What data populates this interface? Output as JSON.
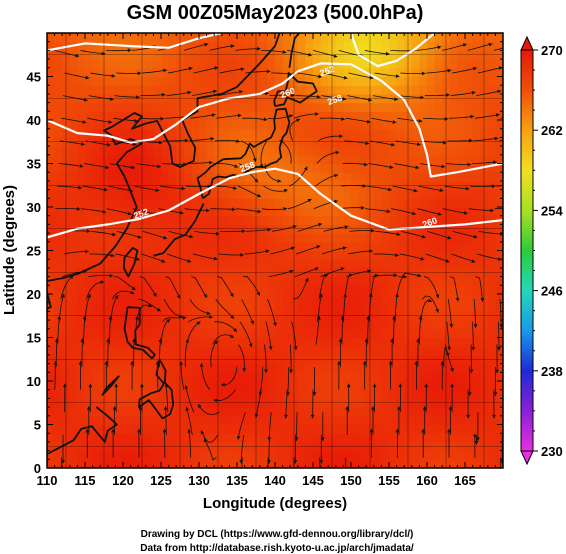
{
  "chart_data": {
    "type": "heatmap",
    "title": "GSM 00Z05May2023 (500.0hPa)",
    "xlabel": "Longitude (degrees)",
    "ylabel": "Latitude  (degrees)",
    "xlim": [
      110,
      170
    ],
    "ylim": [
      0,
      50
    ],
    "x_ticks": [
      110,
      115,
      120,
      125,
      130,
      135,
      140,
      145,
      150,
      155,
      160,
      165
    ],
    "y_ticks": [
      0,
      5,
      10,
      15,
      20,
      25,
      30,
      35,
      40,
      45
    ],
    "colorbar": {
      "min": 230,
      "max": 270,
      "ticks": [
        270,
        262,
        254,
        246,
        238,
        230
      ],
      "colors": [
        "#e830e0",
        "#8a20d8",
        "#1e2ad8",
        "#1a98e8",
        "#22d8b8",
        "#2ccc3a",
        "#a8e020",
        "#f0e020",
        "#f8a010",
        "#f05008",
        "#e81808"
      ]
    },
    "contour_labels": [
      "252",
      "258",
      "260",
      "258",
      "252",
      "260"
    ],
    "grid": true
  },
  "footer": {
    "line1": "Drawing by DCL (https://www.gfd-dennou.org/library/dcl/)",
    "line2": "Data from http://database.rish.kyoto-u.ac.jp/arch/jmadata/"
  }
}
